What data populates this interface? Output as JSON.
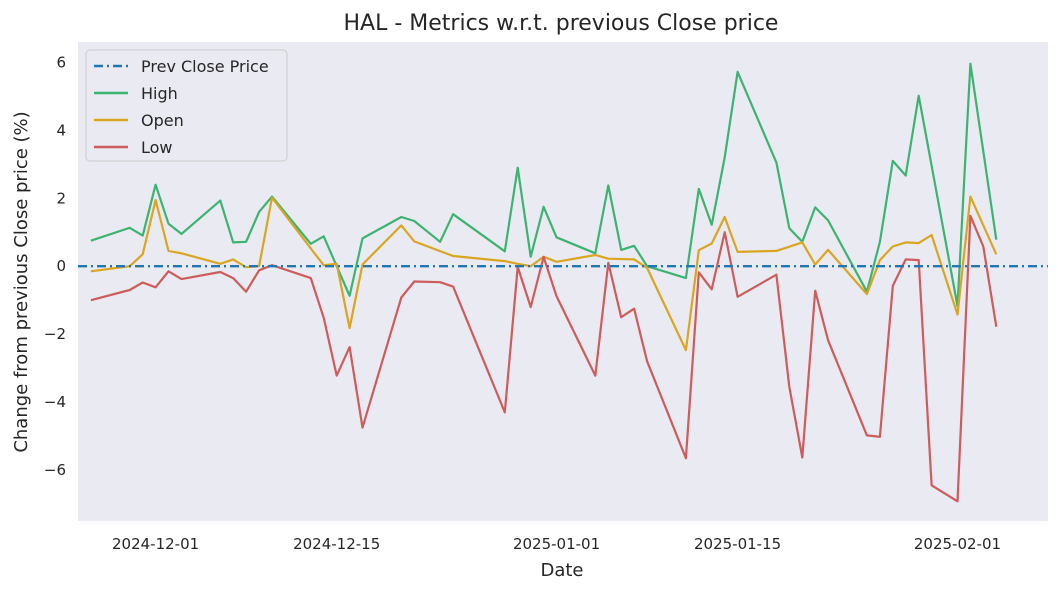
{
  "chart_data": {
    "type": "line",
    "title": "HAL - Metrics w.r.t. previous Close price",
    "xlabel": "Date",
    "ylabel": "Change from previous Close price (%)",
    "ylim": [
      -7.5,
      6.6
    ],
    "xlim": [
      "2024-11-25",
      "2025-02-08"
    ],
    "grid": false,
    "legend": "top-left",
    "background": "#eaeaf2",
    "x_ticks": [
      "2024-12-01",
      "2024-12-15",
      "2025-01-01",
      "2025-01-15",
      "2025-02-01"
    ],
    "y_ticks": [
      -6,
      -4,
      -2,
      0,
      2,
      4,
      6
    ],
    "reference_line": {
      "name": "Prev Close Price",
      "value": 0,
      "color": "#1f77b4"
    },
    "series": [
      {
        "name": "High",
        "color": "#3cb371",
        "points": [
          [
            "2024-11-26",
            0.75
          ],
          [
            "2024-11-29",
            1.13
          ],
          [
            "2024-11-30",
            0.9
          ],
          [
            "2024-12-01",
            2.4
          ],
          [
            "2024-12-02",
            1.25
          ],
          [
            "2024-12-03",
            0.95
          ],
          [
            "2024-12-06",
            1.93
          ],
          [
            "2024-12-07",
            0.7
          ],
          [
            "2024-12-08",
            0.72
          ],
          [
            "2024-12-09",
            1.6
          ],
          [
            "2024-12-10",
            2.05
          ],
          [
            "2024-12-13",
            0.66
          ],
          [
            "2024-12-14",
            0.88
          ],
          [
            "2024-12-16",
            -0.87
          ],
          [
            "2024-12-17",
            0.82
          ],
          [
            "2024-12-20",
            1.45
          ],
          [
            "2024-12-21",
            1.33
          ],
          [
            "2024-12-23",
            0.72
          ],
          [
            "2024-12-24",
            1.53
          ],
          [
            "2024-12-28",
            0.44
          ],
          [
            "2024-12-29",
            2.9
          ],
          [
            "2024-12-30",
            0.28
          ],
          [
            "2024-12-31",
            1.75
          ],
          [
            "2025-01-01",
            0.85
          ],
          [
            "2025-01-04",
            0.38
          ],
          [
            "2025-01-05",
            2.38
          ],
          [
            "2025-01-06",
            0.48
          ],
          [
            "2025-01-07",
            0.6
          ],
          [
            "2025-01-08",
            0.0
          ],
          [
            "2025-01-11",
            -0.35
          ],
          [
            "2025-01-12",
            2.28
          ],
          [
            "2025-01-13",
            1.22
          ],
          [
            "2025-01-14",
            3.2
          ],
          [
            "2025-01-15",
            5.72
          ],
          [
            "2025-01-18",
            3.05
          ],
          [
            "2025-01-19",
            1.12
          ],
          [
            "2025-01-20",
            0.72
          ],
          [
            "2025-01-21",
            1.73
          ],
          [
            "2025-01-22",
            1.35
          ],
          [
            "2025-01-25",
            -0.75
          ],
          [
            "2025-01-26",
            0.72
          ],
          [
            "2025-01-27",
            3.1
          ],
          [
            "2025-01-28",
            2.67
          ],
          [
            "2025-01-29",
            5.02
          ],
          [
            "2025-02-01",
            -1.17
          ],
          [
            "2025-02-02",
            5.96
          ],
          [
            "2025-02-04",
            0.78
          ]
        ]
      },
      {
        "name": "Open",
        "color": "#daa520",
        "points": [
          [
            "2024-11-26",
            -0.15
          ],
          [
            "2024-11-29",
            0.0
          ],
          [
            "2024-11-30",
            0.35
          ],
          [
            "2024-12-01",
            1.95
          ],
          [
            "2024-12-02",
            0.45
          ],
          [
            "2024-12-03",
            0.38
          ],
          [
            "2024-12-06",
            0.07
          ],
          [
            "2024-12-07",
            0.2
          ],
          [
            "2024-12-08",
            -0.03
          ],
          [
            "2024-12-09",
            0.0
          ],
          [
            "2024-12-10",
            2.02
          ],
          [
            "2024-12-13",
            0.52
          ],
          [
            "2024-12-14",
            0.03
          ],
          [
            "2024-12-15",
            0.07
          ],
          [
            "2024-12-16",
            -1.82
          ],
          [
            "2024-12-17",
            0.05
          ],
          [
            "2024-12-20",
            1.2
          ],
          [
            "2024-12-21",
            0.73
          ],
          [
            "2024-12-24",
            0.3
          ],
          [
            "2024-12-28",
            0.15
          ],
          [
            "2024-12-29",
            0.07
          ],
          [
            "2024-12-30",
            0.0
          ],
          [
            "2024-12-31",
            0.28
          ],
          [
            "2025-01-01",
            0.13
          ],
          [
            "2025-01-04",
            0.33
          ],
          [
            "2025-01-05",
            0.22
          ],
          [
            "2025-01-07",
            0.2
          ],
          [
            "2025-01-08",
            -0.05
          ],
          [
            "2025-01-11",
            -2.47
          ],
          [
            "2025-01-12",
            0.47
          ],
          [
            "2025-01-13",
            0.67
          ],
          [
            "2025-01-14",
            1.45
          ],
          [
            "2025-01-15",
            0.42
          ],
          [
            "2025-01-18",
            0.45
          ],
          [
            "2025-01-20",
            0.7
          ],
          [
            "2025-01-21",
            0.05
          ],
          [
            "2025-01-22",
            0.48
          ],
          [
            "2025-01-25",
            -0.82
          ],
          [
            "2025-01-26",
            0.18
          ],
          [
            "2025-01-27",
            0.58
          ],
          [
            "2025-01-28",
            0.7
          ],
          [
            "2025-01-29",
            0.68
          ],
          [
            "2025-01-30",
            0.92
          ],
          [
            "2025-02-01",
            -1.42
          ],
          [
            "2025-02-02",
            2.05
          ],
          [
            "2025-02-04",
            0.35
          ]
        ]
      },
      {
        "name": "Low",
        "color": "#cd5c5c",
        "points": [
          [
            "2024-11-26",
            -1.0
          ],
          [
            "2024-11-29",
            -0.7
          ],
          [
            "2024-11-30",
            -0.48
          ],
          [
            "2024-12-01",
            -0.62
          ],
          [
            "2024-12-02",
            -0.15
          ],
          [
            "2024-12-03",
            -0.38
          ],
          [
            "2024-12-06",
            -0.17
          ],
          [
            "2024-12-07",
            -0.35
          ],
          [
            "2024-12-08",
            -0.75
          ],
          [
            "2024-12-09",
            -0.12
          ],
          [
            "2024-12-10",
            0.03
          ],
          [
            "2024-12-13",
            -0.35
          ],
          [
            "2024-12-14",
            -1.52
          ],
          [
            "2024-12-15",
            -3.22
          ],
          [
            "2024-12-16",
            -2.38
          ],
          [
            "2024-12-17",
            -4.75
          ],
          [
            "2024-12-20",
            -0.92
          ],
          [
            "2024-12-21",
            -0.45
          ],
          [
            "2024-12-23",
            -0.47
          ],
          [
            "2024-12-24",
            -0.6
          ],
          [
            "2024-12-28",
            -4.3
          ],
          [
            "2024-12-29",
            -0.02
          ],
          [
            "2024-12-30",
            -1.2
          ],
          [
            "2024-12-31",
            0.27
          ],
          [
            "2025-01-01",
            -0.88
          ],
          [
            "2025-01-04",
            -3.22
          ],
          [
            "2025-01-05",
            0.1
          ],
          [
            "2025-01-06",
            -1.5
          ],
          [
            "2025-01-07",
            -1.25
          ],
          [
            "2025-01-08",
            -2.8
          ],
          [
            "2025-01-11",
            -5.65
          ],
          [
            "2025-01-12",
            -0.18
          ],
          [
            "2025-01-13",
            -0.68
          ],
          [
            "2025-01-14",
            1.0
          ],
          [
            "2025-01-15",
            -0.9
          ],
          [
            "2025-01-18",
            -0.25
          ],
          [
            "2025-01-19",
            -3.55
          ],
          [
            "2025-01-20",
            -5.63
          ],
          [
            "2025-01-21",
            -0.72
          ],
          [
            "2025-01-22",
            -2.18
          ],
          [
            "2025-01-25",
            -4.98
          ],
          [
            "2025-01-26",
            -5.02
          ],
          [
            "2025-01-27",
            -0.58
          ],
          [
            "2025-01-28",
            0.2
          ],
          [
            "2025-01-29",
            0.18
          ],
          [
            "2025-01-30",
            -6.45
          ],
          [
            "2025-02-01",
            -6.92
          ],
          [
            "2025-02-02",
            1.48
          ],
          [
            "2025-02-03",
            0.58
          ],
          [
            "2025-02-04",
            -1.78
          ]
        ]
      }
    ]
  }
}
